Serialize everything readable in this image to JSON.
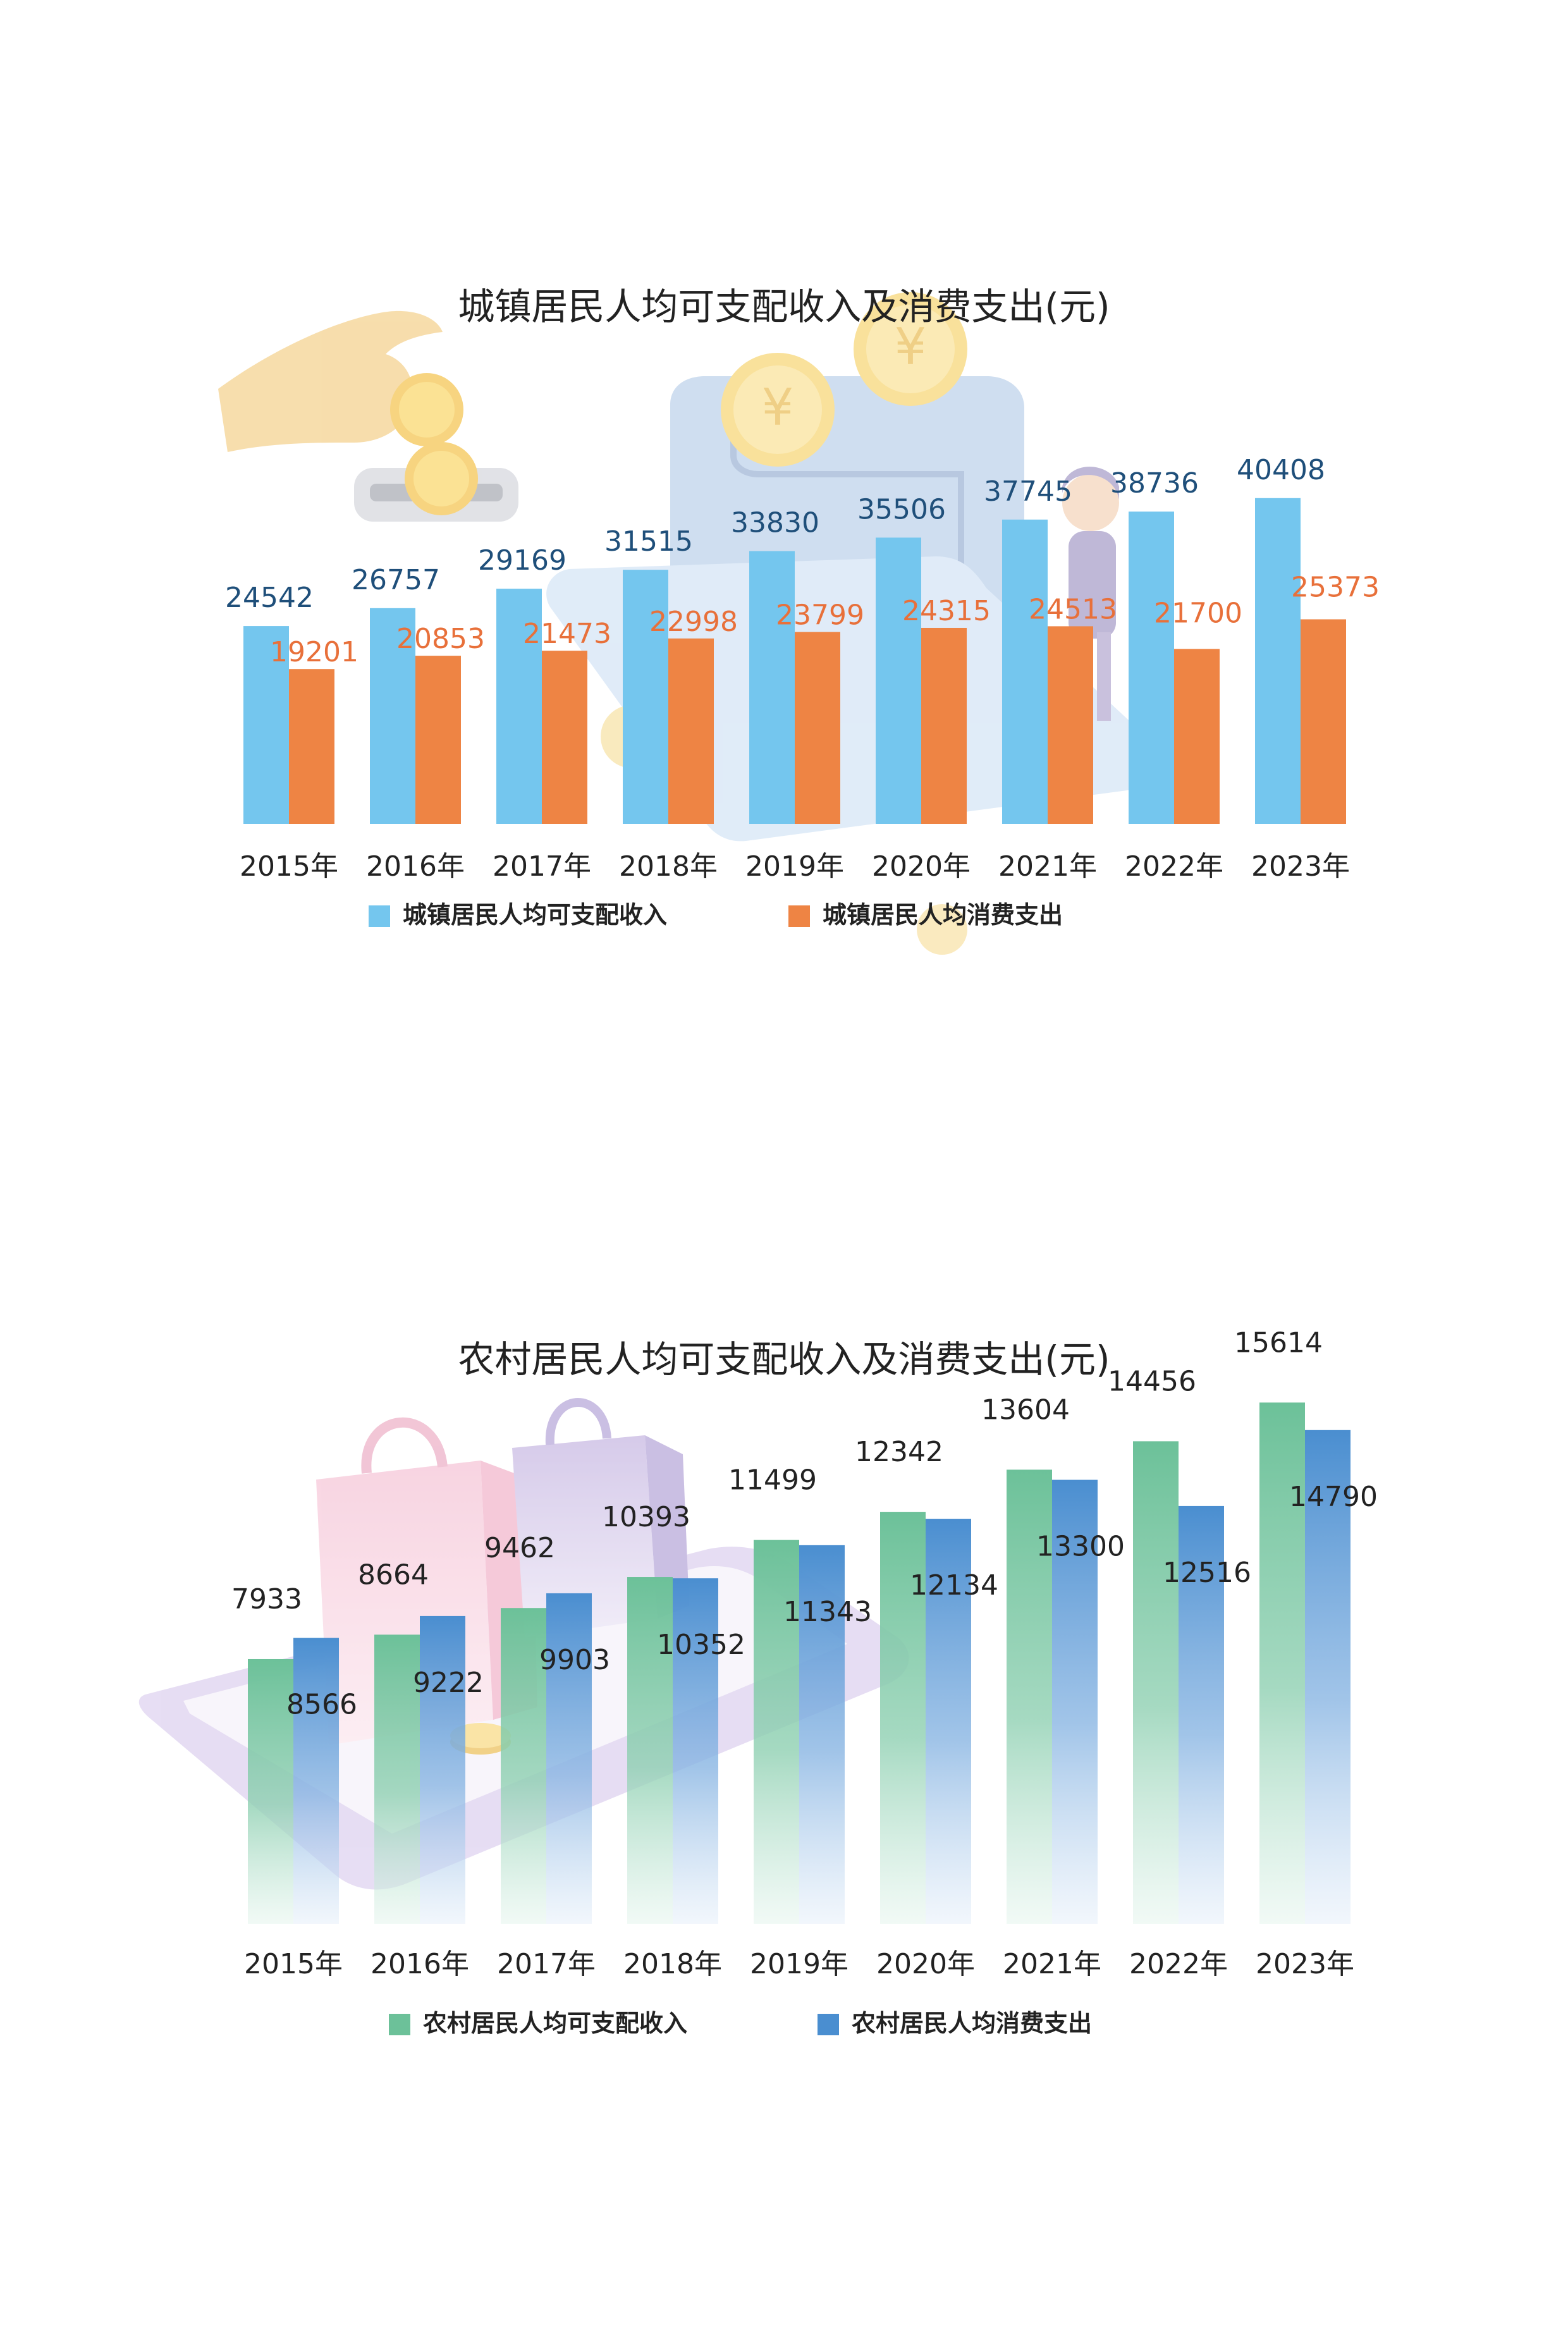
{
  "chart_data": [
    {
      "type": "bar",
      "title": "城镇居民人均可支配收入及消费支出(元)",
      "categories": [
        "2015年",
        "2016年",
        "2017年",
        "2018年",
        "2019年",
        "2020年",
        "2021年",
        "2022年",
        "2023年"
      ],
      "series": [
        {
          "name": "城镇居民人均可支配收入",
          "color": "#74C6EE",
          "label_color": "#1F4F7A",
          "values": [
            24542,
            26757,
            29169,
            31515,
            33830,
            35506,
            37745,
            38736,
            40408
          ],
          "labels": [
            "24542",
            "26757",
            "29169",
            "31515",
            "33830",
            "35506",
            "37745",
            "38736",
            "40408"
          ]
        },
        {
          "name": "城镇居民人均消费支出",
          "color": "#EE8444",
          "label_color": "#E8703A",
          "values": [
            19201,
            20853,
            21473,
            22998,
            23799,
            24315,
            24513,
            21700,
            25373
          ],
          "labels": [
            "19201",
            "20853",
            "21473",
            "22998",
            "23799",
            "24315",
            "24513",
            "21700",
            "25373"
          ]
        }
      ],
      "legend_position": "bottom",
      "grid": false
    },
    {
      "type": "bar",
      "title": "农村居民人均可支配收入及消费支出(元)",
      "categories": [
        "2015年",
        "2016年",
        "2017年",
        "2018年",
        "2019年",
        "2020年",
        "2021年",
        "2022年",
        "2023年"
      ],
      "series": [
        {
          "name": "农村居民人均可支配收入",
          "color": "#6CC199",
          "label_color": "#222222",
          "values": [
            7933,
            8664,
            9462,
            10393,
            11499,
            12342,
            13604,
            14456,
            15614
          ],
          "labels": [
            "7933",
            "8664",
            "9462",
            "10393",
            "11499",
            "12342",
            "13604",
            "14456",
            "15614"
          ]
        },
        {
          "name": "农村居民人均消费支出",
          "color": "#4A8ED0",
          "label_color": "#222222",
          "values": [
            8566,
            9222,
            9903,
            10352,
            11343,
            12134,
            13300,
            12516,
            14790
          ],
          "labels": [
            "8566",
            "9222",
            "9903",
            "10352",
            "11343",
            "12134",
            "13300",
            "12516",
            "14790"
          ]
        }
      ],
      "legend_position": "bottom",
      "grid": false
    }
  ],
  "decorations": {
    "top_chart_background": [
      "hand-dropping-coin",
      "yen-coins",
      "wallet-card",
      "person-figure"
    ],
    "bottom_chart_background": [
      "shopping-bags",
      "smartphone"
    ]
  }
}
